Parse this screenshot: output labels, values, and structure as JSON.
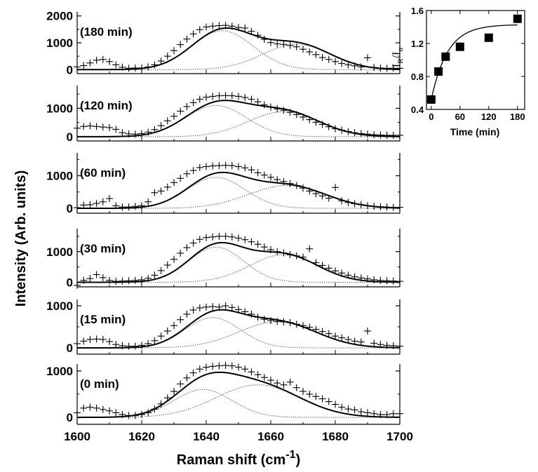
{
  "chart_data": [
    {
      "type": "scatter",
      "role": "raman-spectra",
      "xlabel": "Raman shift (cm",
      "xlabel_sup": "-1",
      "xlabel_close": ")",
      "ylabel": "Intensity (Arb. units)",
      "xlim": [
        1600,
        1700
      ],
      "x_ticks": [
        "1600",
        "1620",
        "1640",
        "1660",
        "1680",
        "1700"
      ],
      "panels": [
        {
          "label": "(180 min)",
          "ylim": [
            -150,
            2150
          ],
          "y_ticks": [
            "0",
            "1000",
            "2000"
          ],
          "tick_values": [
            0,
            1000,
            2000
          ],
          "gauss": [
            {
              "amp": 1450,
              "center": 1645,
              "sigma": 9.5
            },
            {
              "amp": 950,
              "center": 1668,
              "sigma": 10.5
            }
          ],
          "points_x": [
            1600,
            1602,
            1604,
            1606,
            1608,
            1610,
            1612,
            1614,
            1616,
            1618,
            1620,
            1622,
            1624,
            1626,
            1628,
            1630,
            1632,
            1634,
            1636,
            1638,
            1640,
            1642,
            1644,
            1646,
            1648,
            1650,
            1652,
            1654,
            1656,
            1658,
            1660,
            1662,
            1664,
            1666,
            1668,
            1670,
            1672,
            1674,
            1676,
            1678,
            1680,
            1682,
            1684,
            1686,
            1688,
            1690,
            1692,
            1694,
            1696,
            1698,
            1700
          ],
          "points_y": [
            100,
            150,
            250,
            350,
            380,
            300,
            180,
            90,
            50,
            60,
            60,
            100,
            180,
            320,
            500,
            710,
            930,
            1140,
            1330,
            1490,
            1590,
            1620,
            1640,
            1650,
            1620,
            1570,
            1550,
            1430,
            1280,
            1130,
            1010,
            960,
            940,
            900,
            850,
            760,
            660,
            560,
            450,
            380,
            300,
            230,
            180,
            140,
            100,
            440,
            80,
            60,
            50,
            50,
            50
          ]
        },
        {
          "label": "(120 min)",
          "ylim": [
            -150,
            1800
          ],
          "y_ticks": [
            "0",
            "1000"
          ],
          "tick_values": [
            0,
            1000
          ],
          "gauss": [
            {
              "amp": 1100,
              "center": 1643,
              "sigma": 9.5
            },
            {
              "amp": 880,
              "center": 1664,
              "sigma": 11
            }
          ],
          "points_x": [
            1600,
            1602,
            1604,
            1606,
            1608,
            1610,
            1612,
            1614,
            1616,
            1618,
            1620,
            1622,
            1624,
            1626,
            1628,
            1630,
            1632,
            1634,
            1636,
            1638,
            1640,
            1642,
            1644,
            1646,
            1648,
            1650,
            1652,
            1654,
            1656,
            1658,
            1660,
            1662,
            1664,
            1666,
            1668,
            1670,
            1672,
            1674,
            1676,
            1678,
            1680,
            1682,
            1684,
            1686,
            1688,
            1690,
            1692,
            1694,
            1696,
            1698,
            1700
          ],
          "points_y": [
            300,
            360,
            380,
            360,
            340,
            320,
            260,
            140,
            100,
            90,
            110,
            160,
            250,
            390,
            560,
            720,
            900,
            1060,
            1200,
            1320,
            1390,
            1420,
            1440,
            1450,
            1440,
            1420,
            1380,
            1320,
            1230,
            1120,
            1040,
            980,
            930,
            860,
            780,
            690,
            600,
            510,
            430,
            350,
            280,
            230,
            180,
            140,
            110,
            90,
            70,
            60,
            50,
            50,
            50
          ]
        },
        {
          "label": "(60 min)",
          "ylim": [
            -150,
            1700
          ],
          "y_ticks": [
            "0",
            "1000"
          ],
          "tick_values": [
            0,
            1000
          ],
          "gauss": [
            {
              "amp": 950,
              "center": 1643,
              "sigma": 9
            },
            {
              "amp": 700,
              "center": 1665,
              "sigma": 12
            }
          ],
          "points_x": [
            1600,
            1602,
            1604,
            1606,
            1608,
            1610,
            1612,
            1614,
            1616,
            1618,
            1620,
            1622,
            1624,
            1626,
            1628,
            1630,
            1632,
            1634,
            1636,
            1638,
            1640,
            1642,
            1644,
            1646,
            1648,
            1650,
            1652,
            1654,
            1656,
            1658,
            1660,
            1662,
            1664,
            1666,
            1668,
            1670,
            1672,
            1674,
            1676,
            1678,
            1680,
            1682,
            1684,
            1686,
            1688,
            1690,
            1692,
            1694,
            1696,
            1698,
            1700
          ],
          "points_y": [
            20,
            100,
            110,
            150,
            200,
            300,
            80,
            40,
            40,
            60,
            80,
            200,
            480,
            530,
            650,
            790,
            920,
            1060,
            1160,
            1250,
            1280,
            1300,
            1310,
            1320,
            1310,
            1280,
            1240,
            1180,
            1090,
            1020,
            950,
            880,
            820,
            760,
            700,
            620,
            530,
            450,
            380,
            310,
            640,
            230,
            180,
            140,
            110,
            80,
            60,
            50,
            40,
            30,
            30
          ]
        },
        {
          "label": "(30 min)",
          "ylim": [
            -150,
            1750
          ],
          "y_ticks": [
            "0",
            "1000"
          ],
          "tick_values": [
            0,
            1000
          ],
          "gauss": [
            {
              "amp": 1150,
              "center": 1643,
              "sigma": 8.5
            },
            {
              "amp": 900,
              "center": 1664,
              "sigma": 10.5
            }
          ],
          "points_x": [
            1600,
            1602,
            1604,
            1606,
            1608,
            1610,
            1612,
            1614,
            1616,
            1618,
            1620,
            1622,
            1624,
            1626,
            1628,
            1630,
            1632,
            1634,
            1636,
            1638,
            1640,
            1642,
            1644,
            1646,
            1648,
            1650,
            1652,
            1654,
            1656,
            1658,
            1660,
            1662,
            1664,
            1666,
            1668,
            1670,
            1672,
            1674,
            1676,
            1678,
            1680,
            1682,
            1684,
            1686,
            1688,
            1690,
            1692,
            1694,
            1696,
            1698,
            1700
          ],
          "points_y": [
            -100,
            60,
            120,
            250,
            150,
            60,
            30,
            40,
            50,
            60,
            80,
            130,
            230,
            380,
            560,
            750,
            950,
            1130,
            1280,
            1400,
            1460,
            1480,
            1500,
            1500,
            1480,
            1440,
            1390,
            1320,
            1240,
            1150,
            1060,
            1000,
            960,
            900,
            860,
            820,
            1090,
            640,
            550,
            460,
            370,
            300,
            230,
            180,
            140,
            110,
            80,
            60,
            50,
            40,
            30
          ]
        },
        {
          "label": "(15 min)",
          "ylim": [
            -150,
            1150
          ],
          "y_ticks": [
            "0",
            "1000"
          ],
          "tick_values": [
            0,
            1000
          ],
          "gauss": [
            {
              "amp": 720,
              "center": 1642,
              "sigma": 8.5
            },
            {
              "amp": 620,
              "center": 1662,
              "sigma": 12
            }
          ],
          "points_x": [
            1600,
            1602,
            1604,
            1606,
            1608,
            1610,
            1612,
            1614,
            1616,
            1618,
            1620,
            1622,
            1624,
            1626,
            1628,
            1630,
            1632,
            1634,
            1636,
            1638,
            1640,
            1642,
            1644,
            1646,
            1648,
            1650,
            1652,
            1654,
            1656,
            1658,
            1660,
            1662,
            1664,
            1666,
            1668,
            1670,
            1672,
            1674,
            1676,
            1678,
            1680,
            1682,
            1684,
            1686,
            1688,
            1690,
            1692,
            1694,
            1696,
            1698,
            1700
          ],
          "points_y": [
            100,
            160,
            200,
            210,
            200,
            150,
            80,
            50,
            40,
            40,
            60,
            100,
            170,
            280,
            400,
            530,
            670,
            800,
            900,
            950,
            970,
            980,
            970,
            1000,
            960,
            910,
            860,
            800,
            730,
            680,
            650,
            630,
            620,
            600,
            560,
            530,
            490,
            440,
            390,
            340,
            280,
            240,
            200,
            160,
            140,
            400,
            110,
            80,
            60,
            50,
            40
          ]
        },
        {
          "label": "(0 min)",
          "ylim": [
            -150,
            1150
          ],
          "y_ticks": [
            "0",
            "1000"
          ],
          "tick_values": [
            0,
            1000
          ],
          "gauss": [
            {
              "amp": 600,
              "center": 1639,
              "sigma": 9
            },
            {
              "amp": 700,
              "center": 1656,
              "sigma": 13
            }
          ],
          "points_x": [
            1600,
            1602,
            1604,
            1606,
            1608,
            1610,
            1612,
            1614,
            1616,
            1618,
            1620,
            1622,
            1624,
            1626,
            1628,
            1630,
            1632,
            1634,
            1636,
            1638,
            1640,
            1642,
            1644,
            1646,
            1648,
            1650,
            1652,
            1654,
            1656,
            1658,
            1660,
            1662,
            1664,
            1666,
            1668,
            1670,
            1672,
            1674,
            1676,
            1678,
            1680,
            1682,
            1684,
            1686,
            1688,
            1690,
            1692,
            1694,
            1696,
            1698,
            1700
          ],
          "points_y": [
            100,
            200,
            220,
            200,
            170,
            140,
            100,
            60,
            40,
            40,
            60,
            100,
            180,
            290,
            420,
            560,
            720,
            850,
            960,
            1040,
            1080,
            1100,
            1110,
            1120,
            1110,
            1080,
            1040,
            980,
            920,
            860,
            800,
            740,
            700,
            760,
            640,
            560,
            500,
            450,
            400,
            340,
            280,
            220,
            180,
            160,
            120,
            100,
            80,
            60,
            60,
            80,
            80
          ]
        }
      ]
    },
    {
      "type": "scatter",
      "role": "inset",
      "ylabel_main": "I",
      "ylabel_sub1": "R",
      "ylabel_slash": "/I",
      "ylabel_sub2": "α",
      "xlabel": "Time (min)",
      "xlim": [
        -10,
        195
      ],
      "ylim": [
        0.4,
        1.6
      ],
      "x_ticks": [
        "0",
        "60",
        "120",
        "180"
      ],
      "x_tick_values": [
        0,
        60,
        120,
        180
      ],
      "y_ticks": [
        "0.4",
        "0.8",
        "1.2",
        "1.6"
      ],
      "y_tick_values": [
        0.4,
        0.8,
        1.2,
        1.6
      ],
      "x": [
        0,
        15,
        30,
        60,
        120,
        180
      ],
      "y": [
        0.52,
        0.86,
        1.04,
        1.16,
        1.27,
        1.5
      ],
      "fit": {
        "type": "exponential-rise",
        "y0": 0.52,
        "y_inf": 1.43,
        "tau": 34
      }
    }
  ]
}
